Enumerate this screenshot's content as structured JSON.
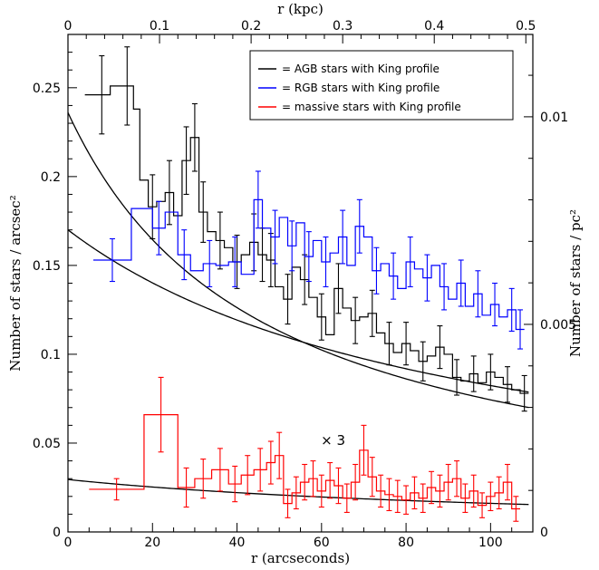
{
  "chart_data": {
    "type": "line",
    "xlabel_bottom": "r (arcseconds)",
    "xlabel_top": "r (kpc)",
    "ylabel_left": "Number of stars / arcsec²",
    "ylabel_right": "Number of stars / pc²",
    "xlim": [
      0,
      110
    ],
    "ylim": [
      0,
      0.28
    ],
    "x_ticks": [
      0,
      20,
      40,
      60,
      80,
      100
    ],
    "y_ticks": [
      0,
      0.05,
      0.1,
      0.15,
      0.2,
      0.25
    ],
    "x_tick_labels": [
      "0",
      "20",
      "40",
      "60",
      "80",
      "100"
    ],
    "y_tick_labels": [
      "0",
      "0.05",
      "0.1",
      "0.15",
      "0.2",
      "0.25"
    ],
    "top_ticks": [
      0,
      0.1,
      0.2,
      0.3,
      0.4,
      0.5
    ],
    "top_tick_labels": [
      "0",
      "0.1",
      "0.2",
      "0.3",
      "0.4",
      "0.5"
    ],
    "top_kpc_per_arcsec": 0.004615,
    "right_ticks": [
      0,
      0.005,
      0.01
    ],
    "right_tick_labels": [
      "0",
      "0.005",
      "0.01"
    ],
    "right_per_left": 0.0428,
    "annotation": "× 3",
    "annotation_pos": [
      62,
      0.049
    ],
    "legend": [
      {
        "label": "= AGB stars with King profile",
        "color": "#000000"
      },
      {
        "label": "= RGB stars with King profile",
        "color": "#0000ff"
      },
      {
        "label": "= massive stars with King profile",
        "color": "#ff0000"
      }
    ],
    "series": [
      {
        "name": "AGB stars",
        "color": "#000000",
        "edges": [
          4,
          7,
          10,
          12,
          14,
          15.5,
          17,
          19,
          21,
          23,
          25,
          27,
          29,
          31,
          33,
          35,
          37,
          39,
          41,
          43,
          45,
          47,
          49,
          51,
          53,
          55,
          57,
          59,
          61,
          63,
          65,
          67,
          69,
          71,
          73,
          75,
          77,
          79,
          81,
          83,
          85,
          87,
          89,
          91,
          93,
          95,
          97,
          99,
          101,
          103,
          105,
          107,
          109
        ],
        "values": [
          0.246,
          0.246,
          0.251,
          0.251,
          0.251,
          0.238,
          0.198,
          0.183,
          0.186,
          0.191,
          0.178,
          0.209,
          0.222,
          0.18,
          0.169,
          0.164,
          0.16,
          0.152,
          0.156,
          0.163,
          0.156,
          0.153,
          0.138,
          0.131,
          0.149,
          0.142,
          0.132,
          0.121,
          0.111,
          0.137,
          0.126,
          0.119,
          0.121,
          0.123,
          0.112,
          0.106,
          0.101,
          0.106,
          0.102,
          0.096,
          0.099,
          0.104,
          0.1,
          0.087,
          0.085,
          0.089,
          0.084,
          0.09,
          0.087,
          0.083,
          0.08,
          0.078
        ],
        "err": [
          0.022,
          0.022,
          0.022,
          0.022,
          0.022,
          0.021,
          0.019,
          0.018,
          0.018,
          0.018,
          0.017,
          0.019,
          0.019,
          0.017,
          0.016,
          0.016,
          0.016,
          0.015,
          0.016,
          0.016,
          0.015,
          0.015,
          0.014,
          0.014,
          0.015,
          0.014,
          0.014,
          0.013,
          0.013,
          0.014,
          0.013,
          0.013,
          0.013,
          0.013,
          0.012,
          0.012,
          0.012,
          0.012,
          0.012,
          0.011,
          0.011,
          0.012,
          0.011,
          0.01,
          0.01,
          0.01,
          0.01,
          0.01,
          0.01,
          0.01,
          0.01,
          0.01
        ],
        "err_x": [
          8,
          14,
          20,
          24,
          28,
          30,
          32,
          36,
          40,
          44,
          46,
          48,
          52,
          56,
          60,
          64,
          68,
          72,
          76,
          80,
          84,
          88,
          92,
          96,
          100,
          104,
          108
        ],
        "err_i": [
          0,
          2,
          7,
          9,
          11,
          12,
          13,
          15,
          17,
          19,
          20,
          21,
          23,
          25,
          27,
          29,
          31,
          33,
          35,
          37,
          39,
          41,
          43,
          45,
          47,
          49,
          51
        ],
        "model": {
          "peak": 0.236,
          "rc": 46,
          "slope": 0.5
        }
      },
      {
        "name": "RGB stars",
        "color": "#0000ff",
        "edges": [
          6,
          15,
          20,
          23,
          26,
          29,
          32,
          35,
          38,
          41,
          44,
          46,
          48,
          50,
          52,
          54,
          56,
          58,
          60,
          62,
          64,
          66,
          68,
          70,
          72,
          74,
          76,
          78,
          80,
          82,
          84,
          86,
          88,
          90,
          92,
          94,
          96,
          98,
          100,
          102,
          104,
          106,
          108
        ],
        "values": [
          0.153,
          0.182,
          0.171,
          0.18,
          0.156,
          0.147,
          0.151,
          0.15,
          0.152,
          0.145,
          0.187,
          0.171,
          0.166,
          0.177,
          0.161,
          0.174,
          0.155,
          0.164,
          0.152,
          0.157,
          0.166,
          0.15,
          0.172,
          0.166,
          0.147,
          0.151,
          0.144,
          0.137,
          0.152,
          0.148,
          0.143,
          0.15,
          0.138,
          0.131,
          0.14,
          0.127,
          0.134,
          0.122,
          0.128,
          0.121,
          0.125,
          0.114
        ],
        "err": [
          0.012,
          0.016,
          0.015,
          0.015,
          0.014,
          0.013,
          0.013,
          0.013,
          0.014,
          0.013,
          0.016,
          0.015,
          0.015,
          0.016,
          0.014,
          0.015,
          0.014,
          0.015,
          0.014,
          0.014,
          0.015,
          0.014,
          0.015,
          0.015,
          0.013,
          0.014,
          0.013,
          0.013,
          0.014,
          0.013,
          0.013,
          0.014,
          0.013,
          0.012,
          0.013,
          0.012,
          0.013,
          0.012,
          0.012,
          0.012,
          0.012,
          0.011
        ],
        "err_x": [
          10.5,
          21.5,
          27.5,
          33.5,
          39.5,
          45,
          49,
          53,
          57,
          61,
          65,
          69,
          73,
          77,
          81,
          85,
          89,
          93,
          97,
          101,
          105,
          107
        ],
        "err_i": [
          0,
          2,
          4,
          6,
          8,
          10,
          12,
          14,
          16,
          18,
          20,
          22,
          24,
          26,
          28,
          30,
          32,
          34,
          36,
          38,
          40,
          41
        ],
        "model": {
          "peak": 0.17,
          "rc": 94,
          "slope": 0.5
        }
      },
      {
        "name": "massive stars",
        "color": "#ff0000",
        "edges": [
          5,
          18,
          26,
          30,
          34,
          38,
          41,
          44,
          47,
          49,
          51,
          53,
          55,
          57,
          59,
          61,
          63,
          65,
          67,
          69,
          71,
          73,
          75,
          77,
          79,
          81,
          83,
          85,
          87,
          89,
          91,
          93,
          95,
          97,
          99,
          101,
          103,
          105,
          107
        ],
        "values": [
          0.024,
          0.066,
          0.025,
          0.03,
          0.035,
          0.027,
          0.032,
          0.035,
          0.039,
          0.043,
          0.016,
          0.022,
          0.028,
          0.03,
          0.023,
          0.029,
          0.026,
          0.019,
          0.028,
          0.046,
          0.031,
          0.023,
          0.021,
          0.02,
          0.018,
          0.022,
          0.019,
          0.025,
          0.023,
          0.028,
          0.03,
          0.019,
          0.023,
          0.015,
          0.02,
          0.022,
          0.028,
          0.013
        ],
        "err": [
          0.006,
          0.021,
          0.011,
          0.011,
          0.012,
          0.01,
          0.011,
          0.012,
          0.012,
          0.013,
          0.008,
          0.009,
          0.01,
          0.01,
          0.009,
          0.01,
          0.01,
          0.008,
          0.01,
          0.014,
          0.011,
          0.009,
          0.009,
          0.009,
          0.008,
          0.009,
          0.008,
          0.009,
          0.009,
          0.01,
          0.01,
          0.008,
          0.009,
          0.007,
          0.008,
          0.009,
          0.01,
          0.007
        ],
        "err_x": [
          11.5,
          22,
          28,
          32,
          36,
          39.5,
          42.5,
          45.5,
          48,
          50,
          52,
          54,
          56,
          58,
          60,
          62,
          64,
          66,
          68,
          70,
          72,
          74,
          76,
          78,
          80,
          82,
          84,
          86,
          88,
          90,
          92,
          94,
          96,
          98,
          100,
          102,
          104,
          106
        ],
        "err_i": [
          0,
          1,
          2,
          3,
          4,
          5,
          6,
          7,
          8,
          9,
          10,
          11,
          12,
          13,
          14,
          15,
          16,
          17,
          18,
          19,
          20,
          21,
          22,
          23,
          24,
          25,
          26,
          27,
          28,
          29,
          30,
          31,
          32,
          33,
          34,
          35,
          36,
          37
        ],
        "model": {
          "peak": 0.0295,
          "rc": 120,
          "slope": 0.5
        }
      }
    ]
  }
}
